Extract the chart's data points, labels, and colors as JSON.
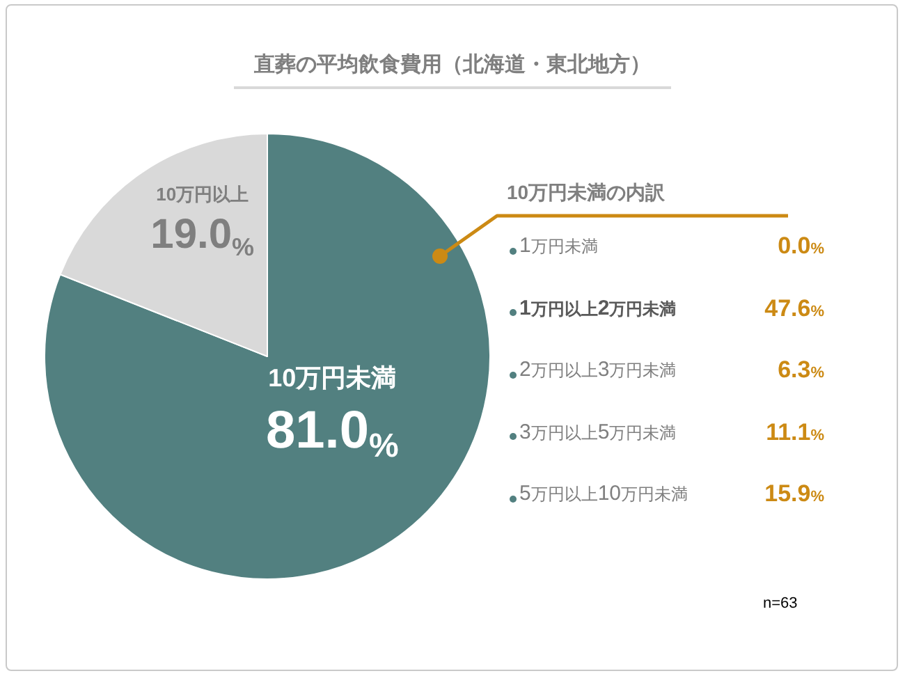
{
  "chart_data": [
    {
      "type": "pie",
      "title": "直葬の平均飲食費用（北海道・東北地方）",
      "categories": [
        "10万円未満",
        "10万円以上"
      ],
      "values": [
        81.0,
        19.0
      ],
      "colors": [
        "#528080",
        "#d9d9d9"
      ],
      "value_labels": [
        "81.0%",
        "19.0%"
      ],
      "annotations": [
        "n=63"
      ]
    },
    {
      "type": "other",
      "title": "10万円未満の内訳",
      "categories": [
        "1万円未満",
        "1万円以上2万円未満",
        "2万円以上3万円未満",
        "3万円以上5万円未満",
        "5万円以上10万円未満"
      ],
      "values": [
        0.0,
        47.6,
        6.3,
        11.1,
        15.9
      ],
      "value_labels": [
        "0.0%",
        "47.6%",
        "6.3%",
        "11.1%",
        "15.9%"
      ],
      "color": "#cc8a14"
    }
  ]
}
